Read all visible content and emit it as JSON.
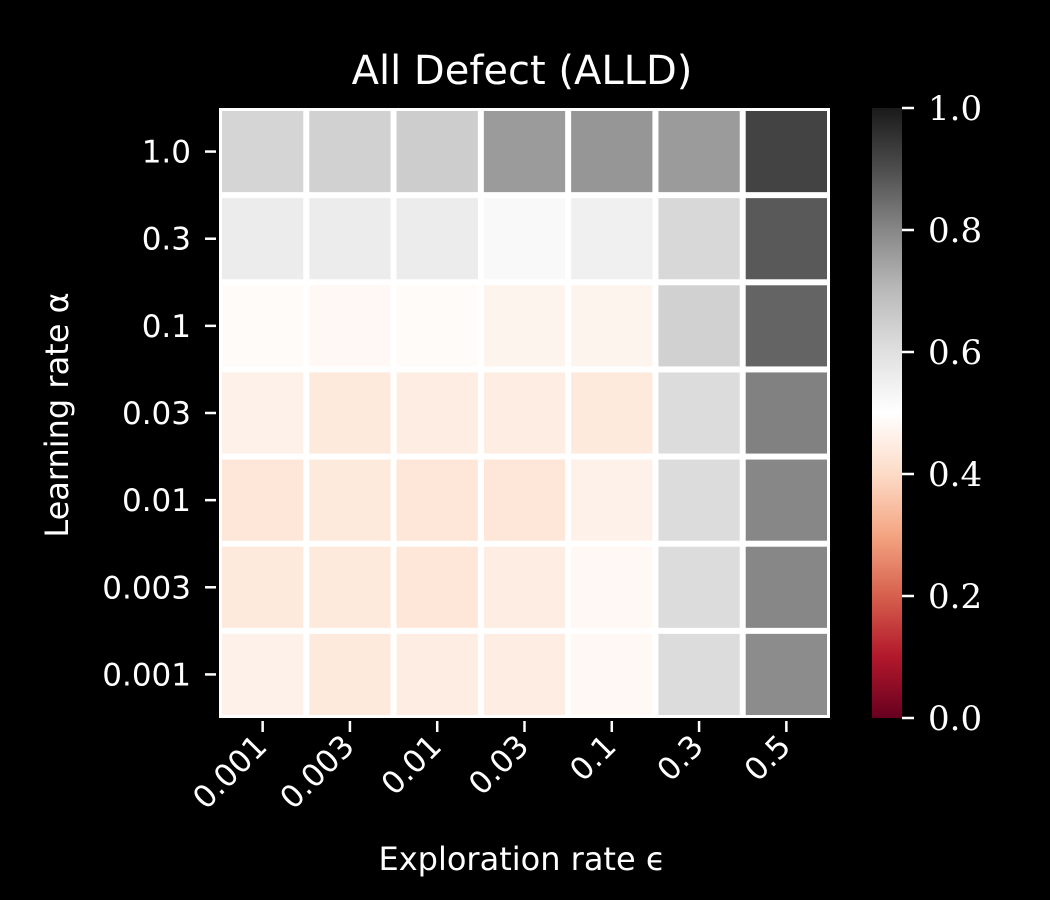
{
  "chart_data": {
    "type": "heatmap",
    "title": "All Defect (ALLD)",
    "xlabel": "Exploration rate ϵ",
    "ylabel": "Learning rate α",
    "x_categories": [
      "0.001",
      "0.003",
      "0.01",
      "0.03",
      "0.1",
      "0.3",
      "0.5"
    ],
    "y_categories": [
      "1.0",
      "0.3",
      "0.1",
      "0.03",
      "0.01",
      "0.003",
      "0.001"
    ],
    "values": [
      [
        0.63,
        0.64,
        0.65,
        0.76,
        0.77,
        0.76,
        0.92
      ],
      [
        0.56,
        0.56,
        0.56,
        0.52,
        0.55,
        0.62,
        0.88
      ],
      [
        0.49,
        0.48,
        0.49,
        0.47,
        0.47,
        0.64,
        0.86
      ],
      [
        0.46,
        0.44,
        0.45,
        0.45,
        0.44,
        0.61,
        0.81
      ],
      [
        0.43,
        0.44,
        0.43,
        0.43,
        0.46,
        0.61,
        0.8
      ],
      [
        0.44,
        0.44,
        0.43,
        0.45,
        0.48,
        0.61,
        0.8
      ],
      [
        0.46,
        0.44,
        0.45,
        0.45,
        0.48,
        0.61,
        0.79
      ]
    ],
    "colorbar": {
      "range": [
        0.0,
        1.0
      ],
      "ticks": [
        "0.0",
        "0.2",
        "0.4",
        "0.6",
        "0.8",
        "1.0"
      ],
      "colormap": "RdGy",
      "stops": [
        "#67001f",
        "#b2182b",
        "#d6604d",
        "#f4a582",
        "#fddbc7",
        "#ffffff",
        "#e0e0e0",
        "#bababa",
        "#878787",
        "#4d4d4d",
        "#1a1a1a"
      ]
    },
    "grid": false,
    "background": "#000000",
    "cell_gap_color": "#ffffff"
  }
}
